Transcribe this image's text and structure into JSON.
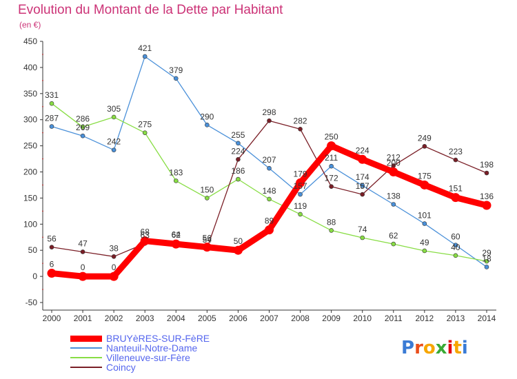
{
  "title": "Evolution du Montant de la Dette par Habitant",
  "unit": "(en €)",
  "logo": "Proxiti",
  "chart_data": {
    "type": "line",
    "x": [
      "2000",
      "2001",
      "2002",
      "2003",
      "2004",
      "2005",
      "2006",
      "2007",
      "2008",
      "2009",
      "2010",
      "2011",
      "2012",
      "2013",
      "2014"
    ],
    "ylim": [
      -50,
      450
    ],
    "yticks": [
      "-50",
      "0",
      "50",
      "100",
      "150",
      "200",
      "250",
      "300",
      "350",
      "400",
      "450"
    ],
    "grid": false,
    "legend_position": "bottom-left",
    "series": [
      {
        "name": "BRUYèRES-SUR-FèRE",
        "color": "#ff0000",
        "values": [
          6,
          0,
          0,
          68,
          62,
          56,
          50,
          89,
          179,
          250,
          224,
          200,
          175,
          151,
          136
        ],
        "labels": [
          "6",
          "0",
          "0",
          "68",
          "62",
          "56",
          "50",
          "89",
          "179",
          "250",
          "224",
          "200",
          "175",
          "151",
          "136"
        ]
      },
      {
        "name": "Nanteuil-Notre-Dame",
        "color": "#4a90d9",
        "values": [
          287,
          269,
          242,
          421,
          379,
          290,
          255,
          207,
          157,
          211,
          174,
          138,
          101,
          60,
          18
        ],
        "labels": [
          "287",
          "269",
          "242",
          "421",
          "379",
          "290",
          "255",
          "207",
          "157",
          "211",
          "174",
          "138",
          "101",
          "60",
          "18"
        ]
      },
      {
        "name": "Villeneuve-sur-Fère",
        "color": "#88dd44",
        "values": [
          331,
          286,
          305,
          275,
          183,
          150,
          186,
          148,
          119,
          88,
          74,
          62,
          49,
          40,
          29
        ],
        "labels": [
          "331",
          "286",
          "305",
          "275",
          "183",
          "150",
          "186",
          "148",
          "119",
          "88",
          "74",
          "62",
          "49",
          "40",
          "29"
        ]
      },
      {
        "name": "Coincy",
        "color": "#7a1e26",
        "values": [
          56,
          47,
          38,
          63,
          64,
          54,
          224,
          298,
          282,
          172,
          157,
          212,
          249,
          223,
          198
        ],
        "labels": [
          "56",
          "47",
          "38",
          "63",
          "64",
          "54",
          "224",
          "298",
          "282",
          "172",
          "157",
          "212",
          "249",
          "223",
          "198"
        ]
      }
    ]
  }
}
